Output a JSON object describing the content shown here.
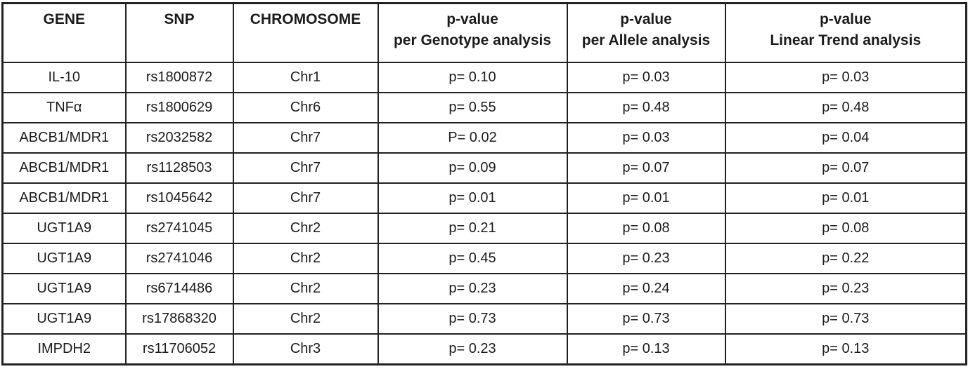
{
  "colors": {
    "background": "#ffffff",
    "border": "#222222",
    "text": "#1c1c1c"
  },
  "table": {
    "columns": [
      {
        "id": "gene",
        "line1": "GENE",
        "line2": ""
      },
      {
        "id": "snp",
        "line1": "SNP",
        "line2": ""
      },
      {
        "id": "chromosome",
        "line1": "CHROMOSOME",
        "line2": ""
      },
      {
        "id": "pvalue-genotype",
        "line1": "p-value",
        "line2": "per Genotype analysis"
      },
      {
        "id": "pvalue-allele",
        "line1": "p-value",
        "line2": "per Allele analysis"
      },
      {
        "id": "pvalue-trend",
        "line1": "p-value",
        "line2": "Linear Trend analysis"
      }
    ],
    "rows": [
      [
        "IL-10",
        "rs1800872",
        "Chr1",
        "p= 0.10",
        "p= 0.03",
        "p= 0.03"
      ],
      [
        "TNFα",
        "rs1800629",
        "Chr6",
        "p= 0.55",
        "p= 0.48",
        "p= 0.48"
      ],
      [
        "ABCB1/MDR1",
        "rs2032582",
        "Chr7",
        "P= 0.02",
        "p= 0.03",
        "p= 0.04"
      ],
      [
        "ABCB1/MDR1",
        "rs1128503",
        "Chr7",
        "p= 0.09",
        "p= 0.07",
        "p= 0.07"
      ],
      [
        "ABCB1/MDR1",
        "rs1045642",
        "Chr7",
        "p= 0.01",
        "p= 0.01",
        "p= 0.01"
      ],
      [
        "UGT1A9",
        "rs2741045",
        "Chr2",
        "p= 0.21",
        "p= 0.08",
        "p= 0.08"
      ],
      [
        "UGT1A9",
        "rs2741046",
        "Chr2",
        "p= 0.45",
        "p= 0.23",
        "p= 0.22"
      ],
      [
        "UGT1A9",
        "rs6714486",
        "Chr2",
        "p= 0.23",
        "p= 0.24",
        "p= 0.23"
      ],
      [
        "UGT1A9",
        "rs17868320",
        "Chr2",
        "p= 0.73",
        "p= 0.73",
        "p= 0.73"
      ],
      [
        "IMPDH2",
        "rs11706052",
        "Chr3",
        "p= 0.23",
        "p= 0.13",
        "p= 0.13"
      ]
    ]
  }
}
